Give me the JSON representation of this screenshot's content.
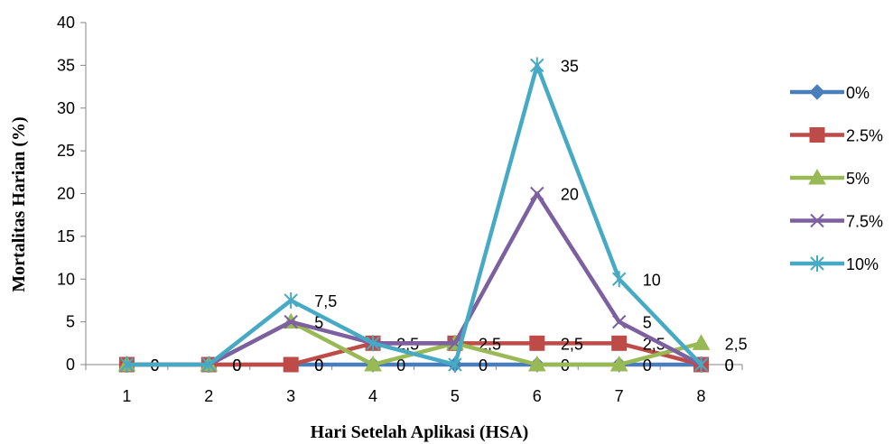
{
  "chart_data": {
    "type": "line",
    "title": "",
    "xlabel": "Hari Setelah Aplikasi (HSA)",
    "ylabel": "Mortalitas Harian (%)",
    "ylim": [
      0,
      40
    ],
    "yticks": [
      "0",
      "5",
      "10",
      "15",
      "20",
      "25",
      "30",
      "35",
      "40"
    ],
    "categories": [
      "1",
      "2",
      "3",
      "4",
      "5",
      "6",
      "7",
      "8"
    ],
    "grid": false,
    "legend": "right",
    "series": [
      {
        "name": "0%",
        "color": "#4A7EBB",
        "marker": "diamond",
        "values": [
          0,
          0,
          0,
          0,
          0,
          0,
          0,
          0
        ],
        "labels": [
          "0",
          "0",
          "0",
          "0",
          "0",
          "0",
          "0",
          "0"
        ]
      },
      {
        "name": "2.5%",
        "color": "#BE4B48",
        "marker": "square",
        "values": [
          0,
          0,
          0,
          2.5,
          2.5,
          2.5,
          2.5,
          0
        ],
        "labels": [
          "0",
          "0",
          "0",
          "2,5",
          "2,5",
          "2,5",
          "2,5",
          "0"
        ]
      },
      {
        "name": "5%",
        "color": "#98B954",
        "marker": "triangle",
        "values": [
          0,
          0,
          5,
          0,
          2.5,
          0,
          0,
          2.5
        ],
        "labels": [
          "",
          "",
          "",
          "",
          "",
          "",
          "",
          "2,5"
        ]
      },
      {
        "name": "7.5%",
        "color": "#7D60A0",
        "marker": "x",
        "values": [
          0,
          0,
          5,
          2.5,
          2.5,
          20,
          5,
          0
        ],
        "labels": [
          "",
          "",
          "5",
          "",
          "",
          "20",
          "5",
          ""
        ]
      },
      {
        "name": "10%",
        "color": "#46AAC5",
        "marker": "star",
        "values": [
          0,
          0,
          7.5,
          2.5,
          0,
          35,
          10,
          0
        ],
        "labels": [
          "",
          "",
          "7,5",
          "",
          "",
          "35",
          "10",
          ""
        ]
      }
    ]
  }
}
